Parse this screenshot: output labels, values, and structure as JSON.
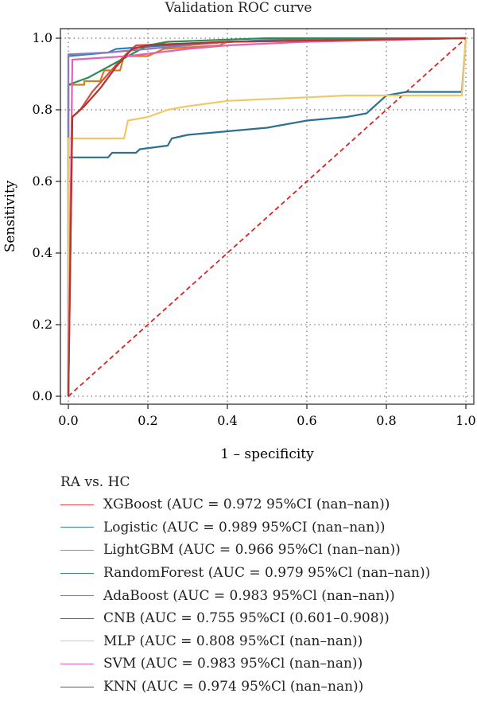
{
  "chart_data": {
    "type": "line",
    "title": "Validation ROC curve",
    "xlabel": "1 – specificity",
    "ylabel": "Sensitivity",
    "xlim": [
      0,
      1
    ],
    "ylim": [
      0,
      1
    ],
    "xticks": [
      "0.0",
      "0.2",
      "0.4",
      "0.6",
      "0.8",
      "1.0"
    ],
    "yticks": [
      "0.0",
      "0.2",
      "0.4",
      "0.6",
      "0.8",
      "1.0"
    ],
    "grid": true,
    "legend_title": "RA vs. HC",
    "legend_position": "below",
    "diagonal_color": "#dd2222",
    "series": [
      {
        "name": "XGBoost (AUC = 0.972 95%CI (nan–nan))",
        "color": "#d94b4b",
        "points": [
          [
            0,
            0
          ],
          [
            0.01,
            0.78
          ],
          [
            0.03,
            0.8
          ],
          [
            0.06,
            0.85
          ],
          [
            0.1,
            0.9
          ],
          [
            0.14,
            0.95
          ],
          [
            0.17,
            0.98
          ],
          [
            0.4,
            0.99
          ],
          [
            1,
            1
          ]
        ]
      },
      {
        "name": "Logistic (AUC = 0.989 95%CI (nan–nan))",
        "color": "#2f7fc1",
        "points": [
          [
            0,
            0
          ],
          [
            0,
            0.95
          ],
          [
            0.1,
            0.96
          ],
          [
            0.12,
            0.97
          ],
          [
            0.25,
            0.98
          ],
          [
            0.5,
            0.995
          ],
          [
            1,
            1
          ]
        ]
      },
      {
        "name": "LightGBM (AUC = 0.966 95%Cl (nan–nan))",
        "color": "#d97b1c",
        "points": [
          [
            0,
            0
          ],
          [
            0,
            0.87
          ],
          [
            0.04,
            0.87
          ],
          [
            0.04,
            0.88
          ],
          [
            0.08,
            0.88
          ],
          [
            0.09,
            0.91
          ],
          [
            0.13,
            0.91
          ],
          [
            0.14,
            0.95
          ],
          [
            0.2,
            0.95
          ],
          [
            0.24,
            0.97
          ],
          [
            0.38,
            0.98
          ],
          [
            0.4,
            0.99
          ],
          [
            1,
            1
          ]
        ]
      },
      {
        "name": "RandomForest (AUC = 0.979 95%Cl (nan–nan))",
        "color": "#2e8b57",
        "points": [
          [
            0,
            0
          ],
          [
            0,
            0.87
          ],
          [
            0.05,
            0.89
          ],
          [
            0.1,
            0.92
          ],
          [
            0.15,
            0.95
          ],
          [
            0.2,
            0.98
          ],
          [
            0.25,
            0.99
          ],
          [
            0.5,
            1.0
          ],
          [
            1,
            1
          ]
        ]
      },
      {
        "name": "AdaBoost (AUC = 0.983 95%Cl (nan–nan))",
        "color": "#8a7ab8",
        "points": [
          [
            0,
            0
          ],
          [
            0,
            0.955
          ],
          [
            0.1,
            0.96
          ],
          [
            0.2,
            0.97
          ],
          [
            0.3,
            0.98
          ],
          [
            0.4,
            0.99
          ],
          [
            1,
            1
          ]
        ]
      },
      {
        "name": "CNB (AUC = 0.755 95%CI (0.601–0.908))",
        "color": "#2f6f8f",
        "points": [
          [
            0,
            0
          ],
          [
            0,
            0.667
          ],
          [
            0.1,
            0.667
          ],
          [
            0.11,
            0.68
          ],
          [
            0.17,
            0.68
          ],
          [
            0.18,
            0.69
          ],
          [
            0.25,
            0.7
          ],
          [
            0.26,
            0.72
          ],
          [
            0.3,
            0.73
          ],
          [
            0.4,
            0.74
          ],
          [
            0.5,
            0.75
          ],
          [
            0.6,
            0.77
          ],
          [
            0.7,
            0.78
          ],
          [
            0.75,
            0.79
          ],
          [
            0.78,
            0.82
          ],
          [
            0.8,
            0.84
          ],
          [
            0.85,
            0.85
          ],
          [
            0.99,
            0.85
          ],
          [
            1,
            1
          ]
        ]
      },
      {
        "name": "MLP (AUC = 0.808 95%CI (nan–nan))",
        "color": "#f0c867",
        "points": [
          [
            0,
            0
          ],
          [
            0,
            0.72
          ],
          [
            0.14,
            0.72
          ],
          [
            0.15,
            0.77
          ],
          [
            0.2,
            0.78
          ],
          [
            0.25,
            0.8
          ],
          [
            0.3,
            0.81
          ],
          [
            0.4,
            0.825
          ],
          [
            0.5,
            0.83
          ],
          [
            0.6,
            0.835
          ],
          [
            0.7,
            0.84
          ],
          [
            0.8,
            0.84
          ],
          [
            0.99,
            0.84
          ],
          [
            1,
            1
          ]
        ]
      },
      {
        "name": "SVM (AUC = 0.983 95%Cl (nan–nan))",
        "color": "#e85fb3",
        "points": [
          [
            0,
            0
          ],
          [
            0.01,
            0.94
          ],
          [
            0.15,
            0.95
          ],
          [
            0.3,
            0.97
          ],
          [
            0.4,
            0.98
          ],
          [
            0.6,
            0.99
          ],
          [
            1,
            1
          ]
        ]
      },
      {
        "name": "KNN (AUC = 0.974 95%Cl (nan–nan))",
        "color": "#b8342a",
        "points": [
          [
            0,
            0
          ],
          [
            0.01,
            0.78
          ],
          [
            0.04,
            0.81
          ],
          [
            0.08,
            0.86
          ],
          [
            0.12,
            0.92
          ],
          [
            0.16,
            0.97
          ],
          [
            0.2,
            0.98
          ],
          [
            0.4,
            0.99
          ],
          [
            1,
            1
          ]
        ]
      }
    ]
  }
}
